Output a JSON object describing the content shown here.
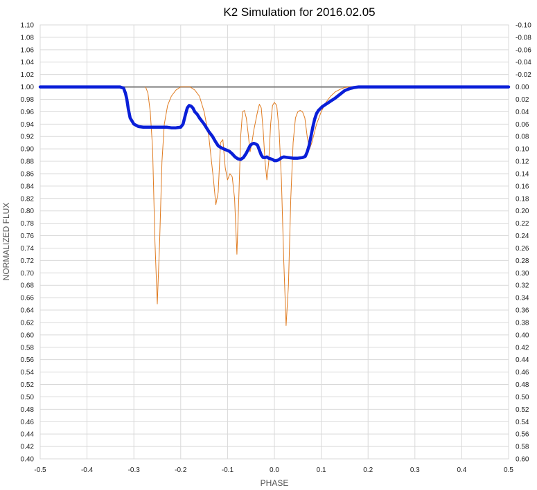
{
  "chart_data": {
    "type": "line",
    "title": "K2 Simulation for 2016.02.05",
    "xlabel": "PHASE",
    "ylabel": "NORMALIZED FLUX",
    "xlim": [
      -0.5,
      0.5
    ],
    "ylim": [
      0.4,
      1.1
    ],
    "y2lim": [
      0.6,
      -0.1
    ],
    "grid": true,
    "x_ticks": [
      "-0.5",
      "-0.4",
      "-0.3",
      "-0.2",
      "-0.1",
      "0.0",
      "0.1",
      "0.2",
      "0.3",
      "0.4",
      "0.5"
    ],
    "y_ticks": [
      "1.10",
      "1.08",
      "1.06",
      "1.04",
      "1.02",
      "1.00",
      "0.98",
      "0.96",
      "0.94",
      "0.92",
      "0.90",
      "0.88",
      "0.86",
      "0.84",
      "0.82",
      "0.80",
      "0.78",
      "0.76",
      "0.74",
      "0.72",
      "0.70",
      "0.68",
      "0.66",
      "0.64",
      "0.62",
      "0.60",
      "0.58",
      "0.56",
      "0.54",
      "0.52",
      "0.50",
      "0.48",
      "0.46",
      "0.44",
      "0.42",
      "0.40"
    ],
    "y2_ticks": [
      "-0.10",
      "-0.08",
      "-0.06",
      "-0.04",
      "-0.02",
      "0.00",
      "0.02",
      "0.04",
      "0.06",
      "0.08",
      "0.10",
      "0.12",
      "0.14",
      "0.16",
      "0.18",
      "0.20",
      "0.22",
      "0.24",
      "0.26",
      "0.28",
      "0.30",
      "0.32",
      "0.34",
      "0.36",
      "0.38",
      "0.40",
      "0.42",
      "0.44",
      "0.46",
      "0.48",
      "0.50",
      "0.52",
      "0.54",
      "0.56",
      "0.58",
      "0.60"
    ],
    "reference_line": {
      "y": 1.0,
      "color": "#7f7f7f"
    },
    "series": [
      {
        "color": "#e07b20",
        "axis": "right",
        "width": 1,
        "x": [
          -0.275,
          -0.27,
          -0.265,
          -0.26,
          -0.255,
          -0.25,
          -0.245,
          -0.24,
          -0.235,
          -0.228,
          -0.22,
          -0.21,
          -0.2,
          -0.19,
          -0.18,
          -0.17,
          -0.16,
          -0.15,
          -0.14,
          -0.13,
          -0.125,
          -0.12,
          -0.115,
          -0.11,
          -0.105,
          -0.1,
          -0.095,
          -0.09,
          -0.085,
          -0.08,
          -0.076,
          -0.072,
          -0.068,
          -0.064,
          -0.06,
          -0.056,
          -0.052,
          -0.048,
          -0.044,
          -0.04,
          -0.036,
          -0.032,
          -0.028,
          -0.024,
          -0.02,
          -0.016,
          -0.012,
          -0.008,
          -0.004,
          0.0,
          0.005,
          0.01,
          0.015,
          0.02,
          0.025,
          0.03,
          0.035,
          0.04,
          0.045,
          0.05,
          0.055,
          0.06,
          0.065,
          0.07,
          0.075,
          0.08,
          0.09,
          0.1,
          0.11,
          0.12,
          0.13,
          0.14,
          0.15,
          0.16,
          0.17
        ],
        "y": [
          0.0,
          0.01,
          0.04,
          0.1,
          0.25,
          0.35,
          0.25,
          0.12,
          0.06,
          0.03,
          0.015,
          0.005,
          0.0,
          0.0,
          0.0,
          0.005,
          0.015,
          0.04,
          0.08,
          0.15,
          0.19,
          0.17,
          0.09,
          0.085,
          0.13,
          0.15,
          0.14,
          0.145,
          0.18,
          0.27,
          0.18,
          0.08,
          0.04,
          0.038,
          0.05,
          0.075,
          0.105,
          0.09,
          0.07,
          0.055,
          0.04,
          0.028,
          0.034,
          0.07,
          0.12,
          0.15,
          0.12,
          0.06,
          0.03,
          0.025,
          0.03,
          0.07,
          0.15,
          0.28,
          0.385,
          0.32,
          0.18,
          0.09,
          0.05,
          0.04,
          0.038,
          0.04,
          0.05,
          0.08,
          0.1,
          0.09,
          0.06,
          0.04,
          0.025,
          0.015,
          0.008,
          0.004,
          0.001,
          0.0,
          0.0
        ]
      },
      {
        "color": "#0a1fd8",
        "axis": "left",
        "width": 4.5,
        "x": [
          -0.5,
          -0.33,
          -0.322,
          -0.318,
          -0.315,
          -0.312,
          -0.308,
          -0.3,
          -0.29,
          -0.28,
          -0.27,
          -0.26,
          -0.25,
          -0.24,
          -0.23,
          -0.22,
          -0.21,
          -0.2,
          -0.195,
          -0.19,
          -0.186,
          -0.182,
          -0.178,
          -0.174,
          -0.17,
          -0.165,
          -0.16,
          -0.15,
          -0.14,
          -0.132,
          -0.126,
          -0.12,
          -0.114,
          -0.108,
          -0.102,
          -0.096,
          -0.09,
          -0.084,
          -0.078,
          -0.072,
          -0.066,
          -0.06,
          -0.056,
          -0.052,
          -0.048,
          -0.044,
          -0.04,
          -0.036,
          -0.032,
          -0.028,
          -0.024,
          -0.02,
          -0.016,
          -0.012,
          -0.008,
          -0.004,
          0.0,
          0.004,
          0.008,
          0.012,
          0.016,
          0.02,
          0.03,
          0.04,
          0.05,
          0.06,
          0.066,
          0.07,
          0.074,
          0.078,
          0.082,
          0.086,
          0.09,
          0.094,
          0.098,
          0.102,
          0.108,
          0.114,
          0.12,
          0.13,
          0.14,
          0.15,
          0.16,
          0.17,
          0.18,
          0.19,
          0.2,
          0.5
        ],
        "y": [
          1.0,
          1.0,
          0.998,
          0.99,
          0.98,
          0.965,
          0.95,
          0.94,
          0.936,
          0.935,
          0.935,
          0.935,
          0.935,
          0.935,
          0.935,
          0.934,
          0.934,
          0.935,
          0.94,
          0.955,
          0.966,
          0.97,
          0.969,
          0.966,
          0.96,
          0.956,
          0.95,
          0.94,
          0.928,
          0.92,
          0.912,
          0.905,
          0.902,
          0.9,
          0.898,
          0.896,
          0.892,
          0.887,
          0.884,
          0.883,
          0.886,
          0.893,
          0.899,
          0.905,
          0.908,
          0.909,
          0.908,
          0.906,
          0.898,
          0.89,
          0.886,
          0.886,
          0.887,
          0.885,
          0.884,
          0.883,
          0.881,
          0.881,
          0.882,
          0.884,
          0.886,
          0.887,
          0.886,
          0.885,
          0.885,
          0.886,
          0.888,
          0.895,
          0.905,
          0.92,
          0.935,
          0.948,
          0.957,
          0.962,
          0.965,
          0.968,
          0.971,
          0.974,
          0.977,
          0.982,
          0.988,
          0.994,
          0.997,
          0.999,
          1.0,
          1.0,
          1.0,
          1.0
        ]
      }
    ]
  }
}
